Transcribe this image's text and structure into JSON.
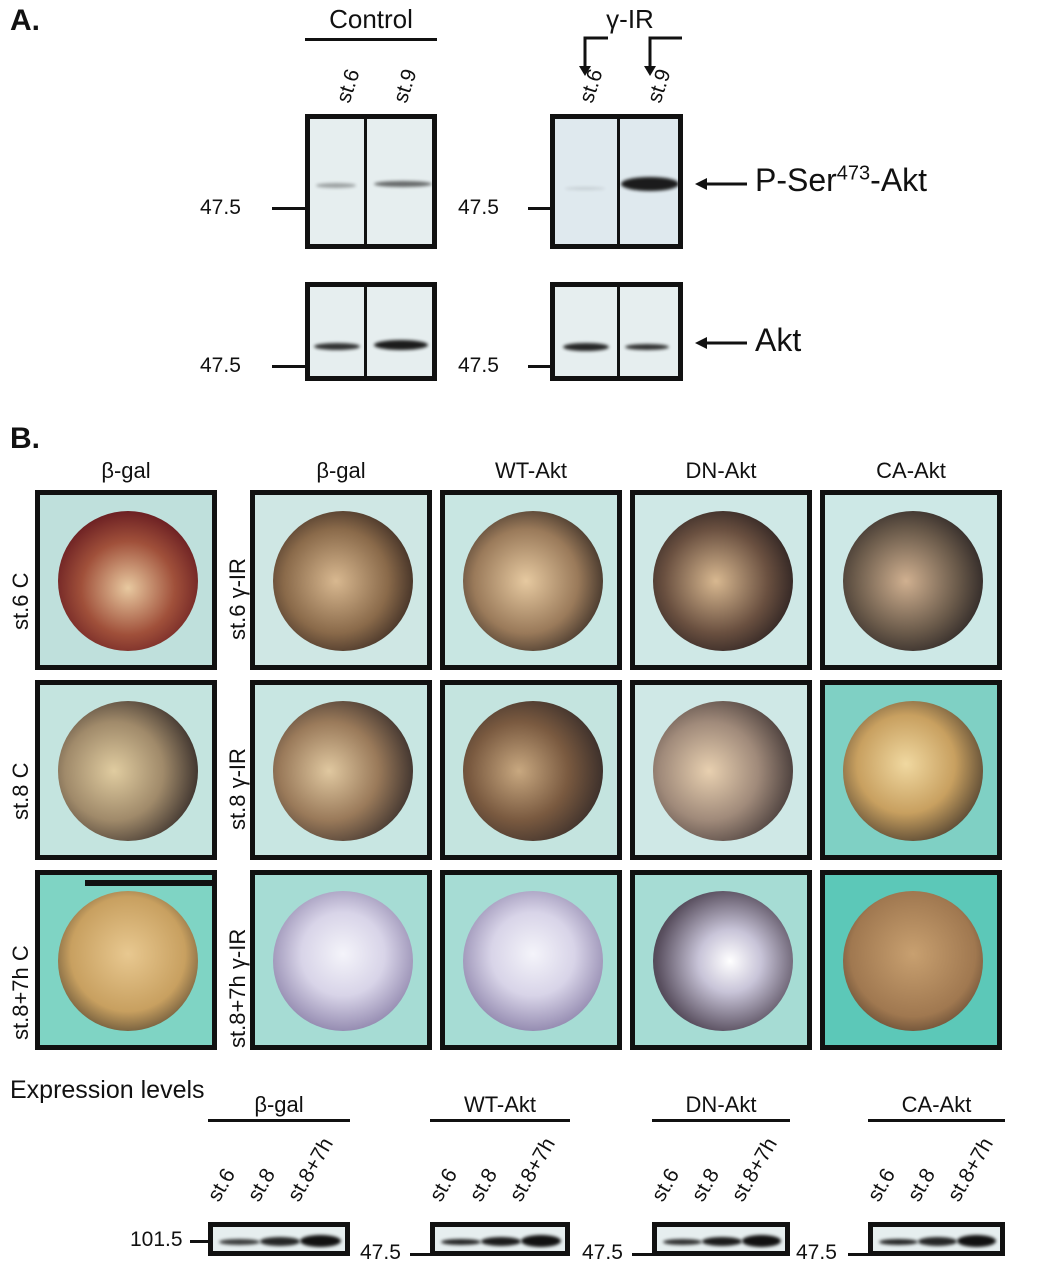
{
  "panel_a": {
    "label": "A.",
    "control_header": "Control",
    "ir_header": "γ-IR",
    "lanes": [
      "st.6",
      "st.9"
    ],
    "marker": "47.5",
    "target_top": {
      "prefix": "P-Ser",
      "sup": "473",
      "suffix": "-Akt"
    },
    "target_bottom": "Akt"
  },
  "panel_b": {
    "label": "B.",
    "columns": [
      "β-gal",
      "β-gal",
      "WT-Akt",
      "DN-Akt",
      "CA-Akt"
    ],
    "rows_control": [
      "st.6 C",
      "st.8 C",
      "st.8+7h C"
    ],
    "rows_ir": [
      "st.6 γ-IR",
      "st.8 γ-IR",
      "st.8+7h γ-IR"
    ]
  },
  "expression": {
    "title": "Expression levels",
    "lanes": [
      "st.6",
      "st.8",
      "st.8+7h"
    ],
    "groups": [
      {
        "name": "β-gal",
        "marker": "101.5"
      },
      {
        "name": "WT-Akt",
        "marker": "47.5"
      },
      {
        "name": "DN-Akt",
        "marker": "47.5"
      },
      {
        "name": "CA-Akt",
        "marker": "47.5"
      }
    ]
  }
}
